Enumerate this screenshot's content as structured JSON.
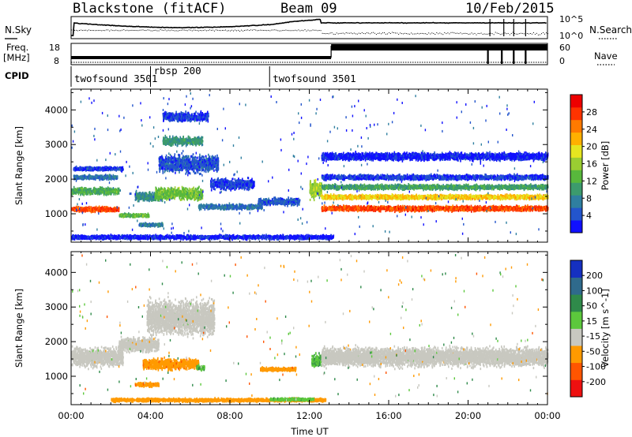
{
  "header": {
    "station": "Blackstone (fitACF)",
    "beam": "Beam 09",
    "date": "10/Feb/2015"
  },
  "strip_labels": {
    "nsky": "N.Sky",
    "nsearch": "N.Search",
    "freq_line1": "Freq.",
    "freq_line2": "[MHz]",
    "nave": "Nave",
    "cpid": "CPID",
    "noise_top": "10^5",
    "noise_bottom": "10^0",
    "freq_top": "18",
    "freq_bottom": "8",
    "nave_top": "60",
    "nave_bottom": "0"
  },
  "cpid_segments": [
    {
      "label": "twofsound 3501",
      "start_hour": 0
    },
    {
      "label": "rbsp 200",
      "start_hour": 4
    },
    {
      "label": "twofsound 3501",
      "start_hour": 10
    }
  ],
  "chart_data": [
    {
      "type": "heatmap",
      "quantity": "power",
      "ylabel": "Slant Range [km]",
      "xlabel": "Time UT",
      "ylim": [
        180,
        4600
      ],
      "yticks": [
        1000,
        2000,
        3000,
        4000
      ],
      "xlim_hours": [
        0,
        24
      ],
      "xtick_labels": [
        "00:00",
        "04:00",
        "08:00",
        "12:00",
        "16:00",
        "20:00",
        "00:00"
      ],
      "colorbar": {
        "label": "Power [dB]",
        "ticks": [
          "4",
          "8",
          "12",
          "16",
          "20",
          "24",
          "28"
        ],
        "colors": [
          "#1010ff",
          "#2355cc",
          "#2f7fa0",
          "#3c9b6d",
          "#58b83c",
          "#9acd32",
          "#e5e520",
          "#ffb000",
          "#ff7a00",
          "#ff3300",
          "#ee0000"
        ]
      },
      "echo_bands": [
        {
          "t0": 0.0,
          "t1": 2.4,
          "r_center": 1130,
          "r_width": 170,
          "level": 27
        },
        {
          "t0": 0.0,
          "t1": 2.4,
          "r_center": 1650,
          "r_width": 250,
          "level": 13
        },
        {
          "t0": 0.1,
          "t1": 2.3,
          "r_center": 2050,
          "r_width": 150,
          "level": 8
        },
        {
          "t0": 0.1,
          "t1": 2.6,
          "r_center": 2300,
          "r_width": 130,
          "level": 5
        },
        {
          "t0": 2.4,
          "t1": 3.9,
          "r_center": 950,
          "r_width": 120,
          "level": 14
        },
        {
          "t0": 3.4,
          "t1": 4.6,
          "r_center": 680,
          "r_width": 120,
          "level": 9
        },
        {
          "t0": 3.2,
          "t1": 4.6,
          "r_center": 1500,
          "r_width": 320,
          "level": 10
        },
        {
          "t0": 4.2,
          "t1": 6.6,
          "r_center": 1580,
          "r_width": 420,
          "level": 15
        },
        {
          "t0": 4.4,
          "t1": 7.4,
          "r_center": 2450,
          "r_width": 600,
          "level": 6
        },
        {
          "t0": 4.6,
          "t1": 6.6,
          "r_center": 3100,
          "r_width": 300,
          "level": 11
        },
        {
          "t0": 4.6,
          "t1": 6.9,
          "r_center": 3800,
          "r_width": 320,
          "level": 5
        },
        {
          "t0": 6.4,
          "t1": 9.6,
          "r_center": 1200,
          "r_width": 180,
          "level": 8
        },
        {
          "t0": 7.0,
          "t1": 9.2,
          "r_center": 1850,
          "r_width": 360,
          "level": 5
        },
        {
          "t0": 9.4,
          "t1": 11.5,
          "r_center": 1350,
          "r_width": 240,
          "level": 6
        },
        {
          "t0": 0.0,
          "t1": 13.2,
          "r_center": 320,
          "r_width": 140,
          "level": 4
        },
        {
          "t0": 12.0,
          "t1": 12.6,
          "r_center": 1700,
          "r_width": 600,
          "level": 17
        },
        {
          "t0": 12.6,
          "t1": 24.0,
          "r_center": 1150,
          "r_width": 180,
          "level": 27
        },
        {
          "t0": 12.6,
          "t1": 24.0,
          "r_center": 1480,
          "r_width": 160,
          "level": 21
        },
        {
          "t0": 12.6,
          "t1": 24.0,
          "r_center": 1770,
          "r_width": 170,
          "level": 12
        },
        {
          "t0": 12.6,
          "t1": 24.0,
          "r_center": 2050,
          "r_width": 170,
          "level": 5
        },
        {
          "t0": 12.6,
          "t1": 24.0,
          "r_center": 2650,
          "r_width": 260,
          "level": 4
        }
      ]
    },
    {
      "type": "heatmap",
      "quantity": "velocity",
      "ylabel": "Slant Range [km]",
      "xlabel": "Time UT",
      "ylim": [
        180,
        4600
      ],
      "yticks": [
        1000,
        2000,
        3000,
        4000
      ],
      "xlim_hours": [
        0,
        24
      ],
      "xtick_labels": [
        "00:00",
        "04:00",
        "08:00",
        "12:00",
        "16:00",
        "20:00",
        "00:00"
      ],
      "colorbar": {
        "label": "Velocity [m s^-1]",
        "ticks": [
          "200",
          "100",
          "50",
          "15",
          "-15",
          "-50",
          "-100",
          "-200"
        ],
        "colors": [
          "#1530c0",
          "#2f6a8c",
          "#2f8a4a",
          "#5cc83c",
          "#c8c8c0",
          "#ff9a00",
          "#ff5500",
          "#ee1010"
        ]
      },
      "echo_bands": [
        {
          "t0": 0.0,
          "t1": 2.6,
          "r_center": 1550,
          "r_width": 650,
          "vel": 0
        },
        {
          "t0": 2.4,
          "t1": 4.4,
          "r_center": 1900,
          "r_width": 500,
          "vel": 0
        },
        {
          "t0": 3.8,
          "t1": 7.2,
          "r_center": 2700,
          "r_width": 1200,
          "vel": 0
        },
        {
          "t0": 3.6,
          "t1": 6.4,
          "r_center": 1350,
          "r_width": 380,
          "vel": -40
        },
        {
          "t0": 3.2,
          "t1": 4.4,
          "r_center": 760,
          "r_width": 140,
          "vel": -40
        },
        {
          "t0": 6.3,
          "t1": 6.7,
          "r_center": 1250,
          "r_width": 180,
          "vel": 30
        },
        {
          "t0": 9.5,
          "t1": 11.3,
          "r_center": 1200,
          "r_width": 120,
          "vel": -40
        },
        {
          "t0": 2.0,
          "t1": 12.8,
          "r_center": 310,
          "r_width": 110,
          "vel": -30
        },
        {
          "t0": 10.0,
          "t1": 12.2,
          "r_center": 330,
          "r_width": 90,
          "vel": 25
        },
        {
          "t0": 12.1,
          "t1": 12.6,
          "r_center": 1450,
          "r_width": 450,
          "vel": 30
        },
        {
          "t0": 12.6,
          "t1": 24.0,
          "r_center": 1550,
          "r_width": 650,
          "vel": 0
        }
      ]
    }
  ],
  "colors": {
    "frame": "#000000",
    "background": "#ffffff"
  }
}
